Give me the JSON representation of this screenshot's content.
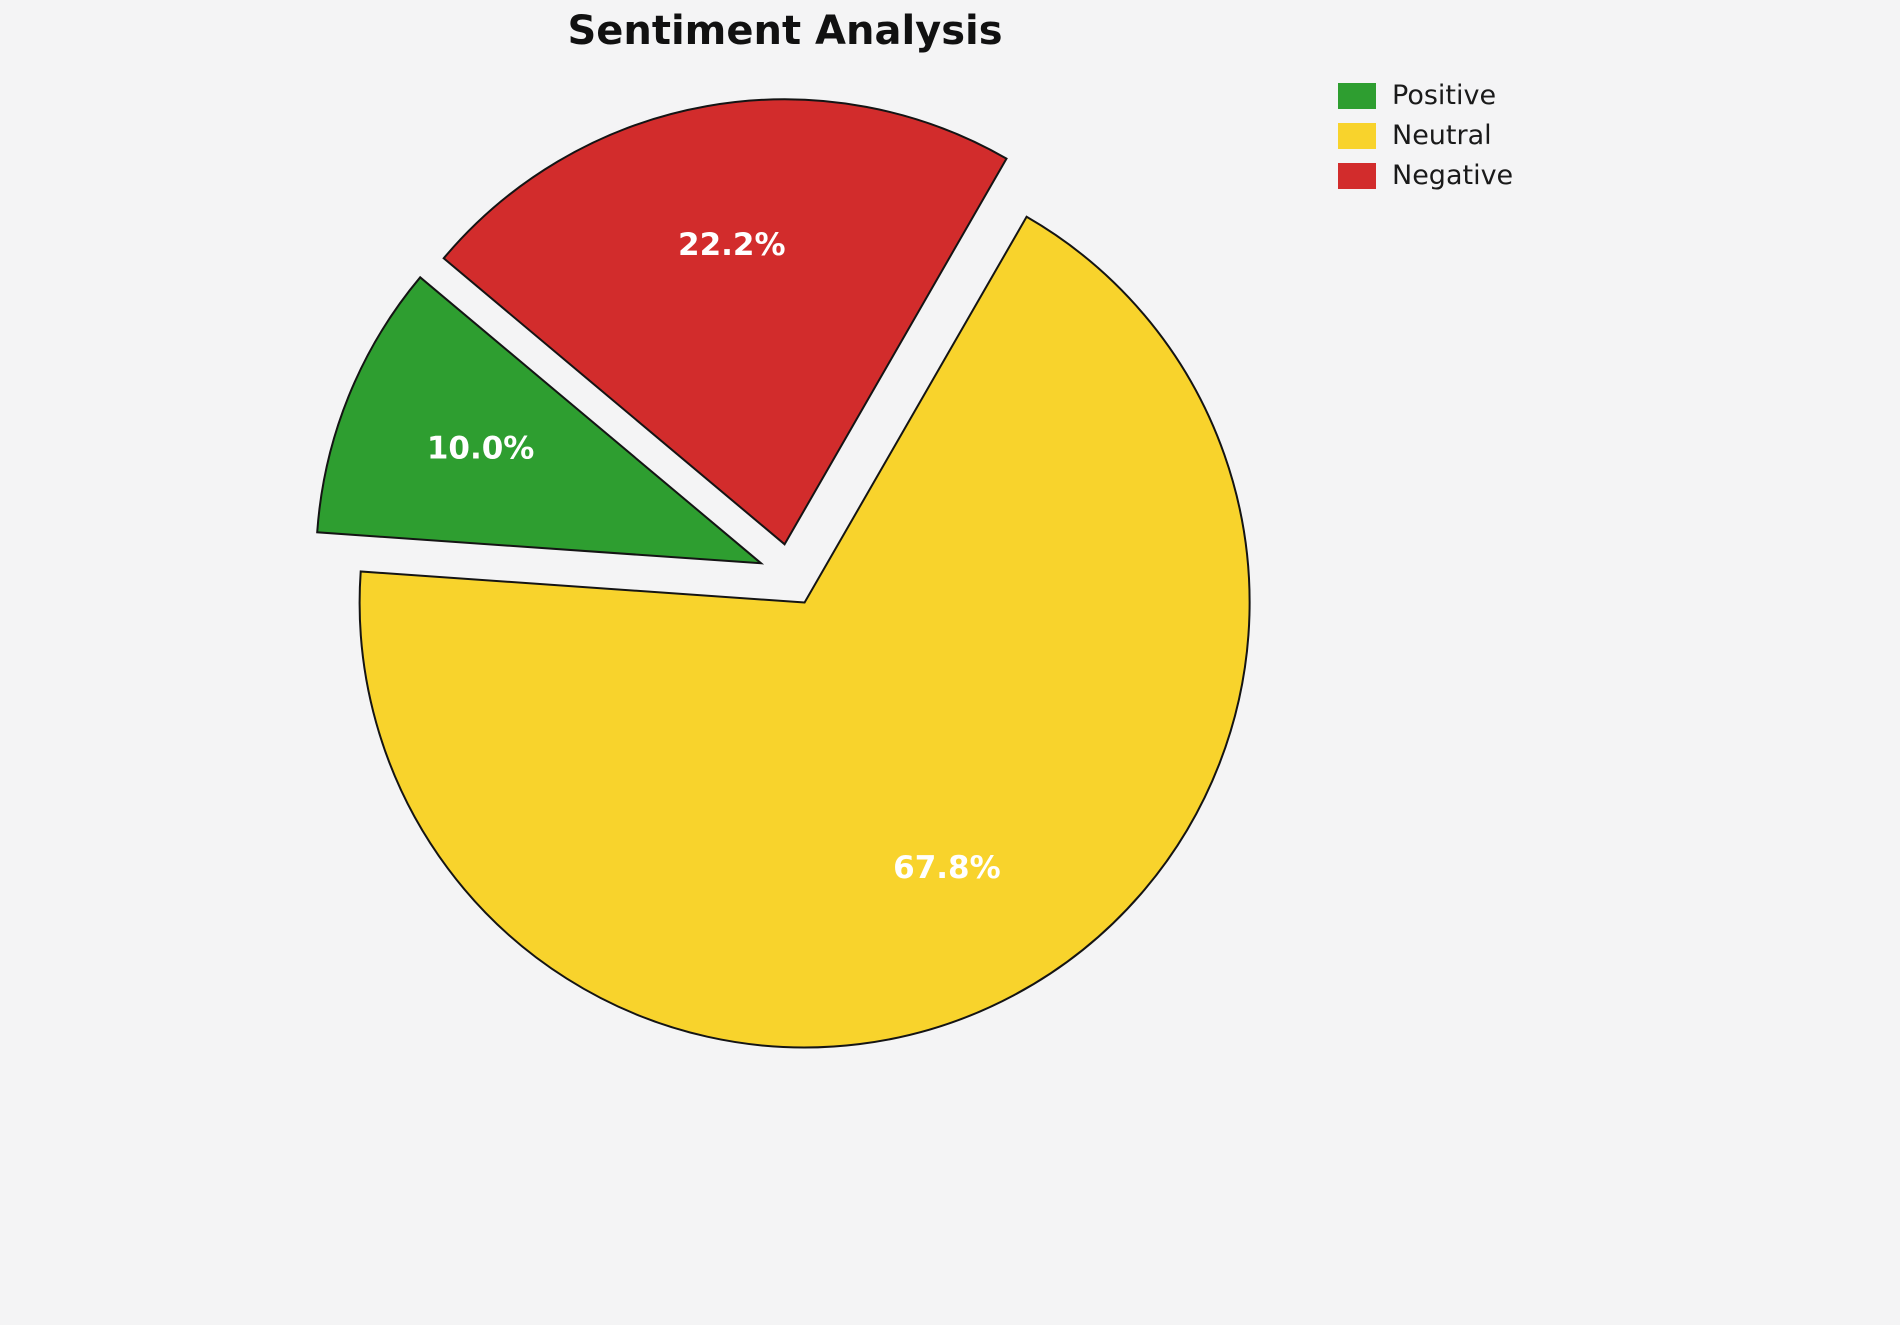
{
  "title": "Sentiment Analysis",
  "chart_data": {
    "type": "pie",
    "title": "Sentiment Analysis",
    "categories": [
      "Positive",
      "Neutral",
      "Negative"
    ],
    "values": [
      10.0,
      67.8,
      22.2
    ],
    "labels": [
      "10.0%",
      "67.8%",
      "22.2%"
    ],
    "colors": [
      "#2e9e30",
      "#f8d32c",
      "#d22c2c"
    ],
    "start_angle": 140,
    "direction": "counterclockwise",
    "explode": 0.07,
    "label_radius": 0.68,
    "edge_color": "#141414",
    "legend_position": "upper right",
    "background": "#f4f4f5"
  },
  "legend": {
    "items": [
      {
        "label": "Positive",
        "color": "#2e9e30"
      },
      {
        "label": "Neutral",
        "color": "#f8d32c"
      },
      {
        "label": "Negative",
        "color": "#d22c2c"
      }
    ]
  }
}
